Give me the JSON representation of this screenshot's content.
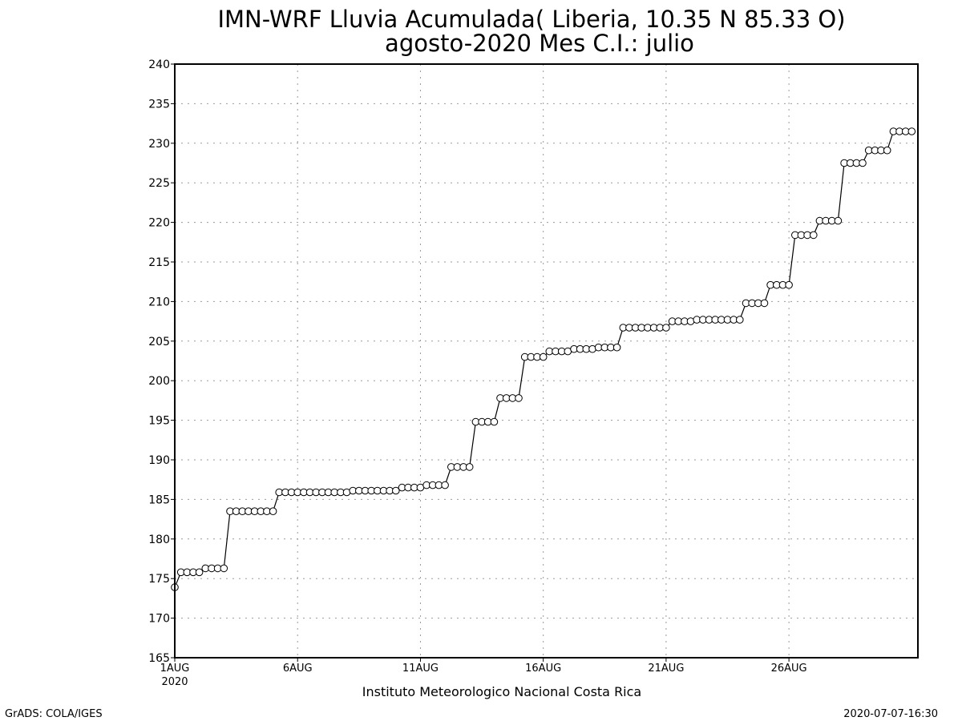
{
  "header": {
    "title_line1": "IMN-WRF  Lluvia Acumulada( Liberia, 10.35  N 85.33  O)",
    "title_line2": "agosto-2020 Mes C.I.: julio"
  },
  "footer": {
    "left": "GrADS: COLA/IGES",
    "center": "Instituto Meteorologico Nacional Costa Rica",
    "right": "2020-07-07-16:30"
  },
  "chart_data": {
    "type": "line",
    "marker": "open-circle",
    "line_color": "#000000",
    "ylim": [
      165,
      240
    ],
    "y_ticks": [
      165,
      170,
      175,
      180,
      185,
      190,
      195,
      200,
      205,
      210,
      215,
      220,
      225,
      230,
      235,
      240
    ],
    "x_range_days": [
      1,
      31.25
    ],
    "x_ticks": [
      {
        "day": 1,
        "label": "1AUG",
        "sublabel": "2020"
      },
      {
        "day": 6,
        "label": "6AUG",
        "sublabel": ""
      },
      {
        "day": 11,
        "label": "11AUG",
        "sublabel": ""
      },
      {
        "day": 16,
        "label": "16AUG",
        "sublabel": ""
      },
      {
        "day": 21,
        "label": "21AUG",
        "sublabel": ""
      },
      {
        "day": 26,
        "label": "26AUG",
        "sublabel": ""
      }
    ],
    "grid": true,
    "xlabel": "",
    "ylabel": "",
    "x_step_days": 0.25,
    "series": [
      {
        "values": [
          173.9,
          175.8,
          175.8,
          175.8,
          175.8,
          176.3,
          176.3,
          176.3,
          176.3,
          183.5,
          183.5,
          183.5,
          183.5,
          183.5,
          183.5,
          183.5,
          183.5,
          185.9,
          185.9,
          185.9,
          185.9,
          185.9,
          185.9,
          185.9,
          185.9,
          185.9,
          185.9,
          185.9,
          185.9,
          186.1,
          186.1,
          186.1,
          186.1,
          186.1,
          186.1,
          186.1,
          186.1,
          186.5,
          186.5,
          186.5,
          186.5,
          186.8,
          186.8,
          186.8,
          186.8,
          189.1,
          189.1,
          189.1,
          189.1,
          194.8,
          194.8,
          194.8,
          194.8,
          197.8,
          197.8,
          197.8,
          197.8,
          203.0,
          203.0,
          203.0,
          203.0,
          203.7,
          203.7,
          203.7,
          203.7,
          204.0,
          204.0,
          204.0,
          204.0,
          204.2,
          204.2,
          204.2,
          204.2,
          206.7,
          206.7,
          206.7,
          206.7,
          206.7,
          206.7,
          206.7,
          206.7,
          207.5,
          207.5,
          207.5,
          207.5,
          207.7,
          207.7,
          207.7,
          207.7,
          207.7,
          207.7,
          207.7,
          207.7,
          209.8,
          209.8,
          209.8,
          209.8,
          212.1,
          212.1,
          212.1,
          212.1,
          218.4,
          218.4,
          218.4,
          218.4,
          220.2,
          220.2,
          220.2,
          220.2,
          227.5,
          227.5,
          227.5,
          227.5,
          229.1,
          229.1,
          229.1,
          229.1,
          231.5,
          231.5,
          231.5,
          231.5
        ]
      }
    ]
  }
}
